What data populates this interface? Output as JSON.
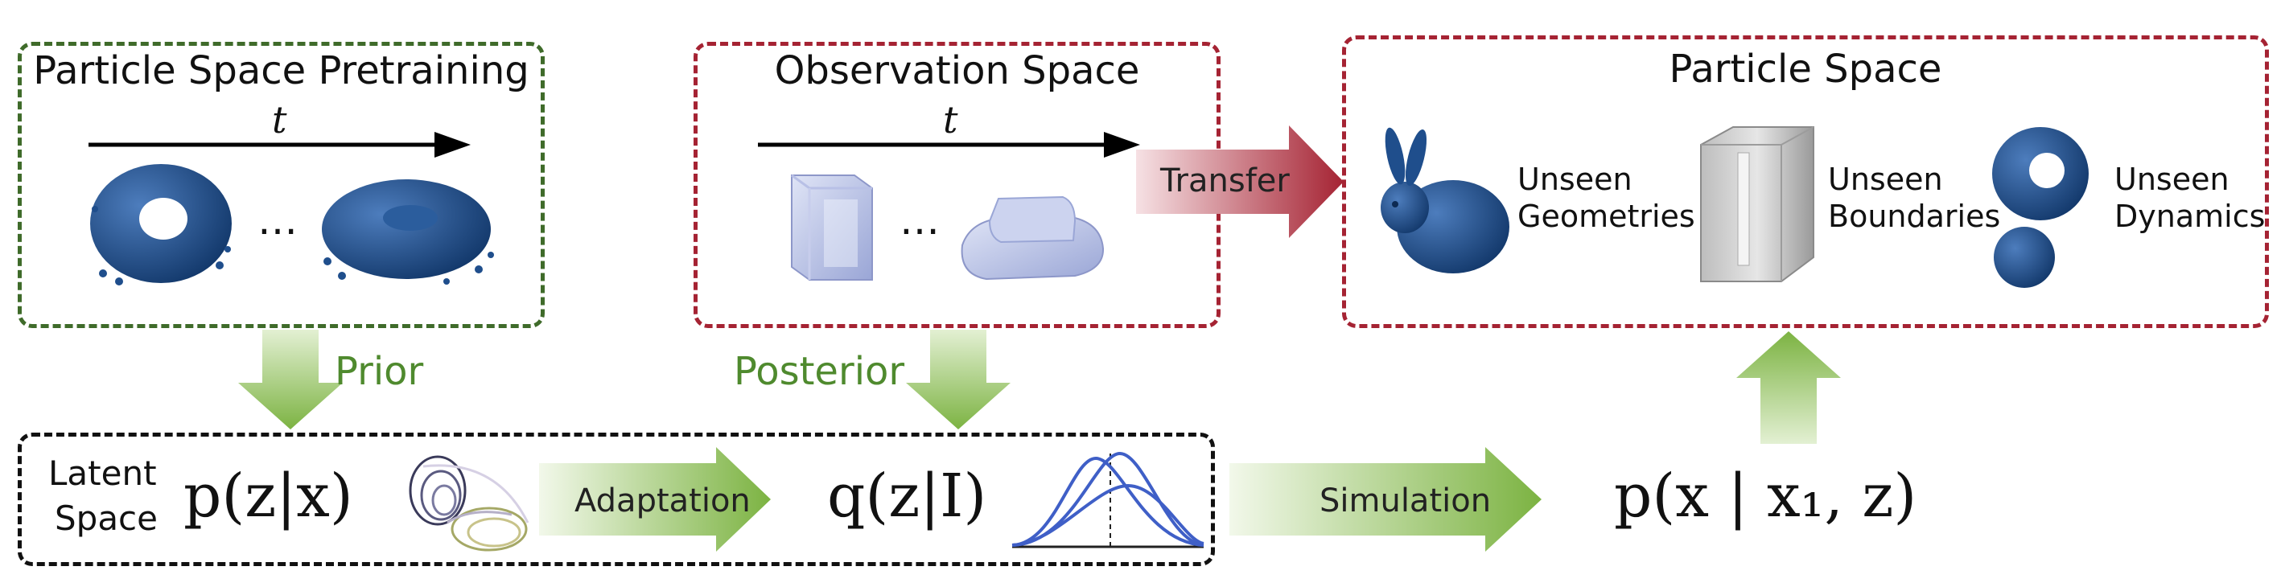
{
  "pretraining": {
    "title": "Particle Space Pretraining",
    "time_symbol": "t",
    "ellipsis": "…"
  },
  "observation": {
    "title": "Observation Space",
    "time_symbol": "t",
    "ellipsis": "…"
  },
  "particle": {
    "title": "Particle Space",
    "items": [
      {
        "line1": "Unseen",
        "line2": "Geometries"
      },
      {
        "line1": "Unseen",
        "line2": "Boundaries"
      },
      {
        "line1": "Unseen",
        "line2": "Dynamics"
      }
    ]
  },
  "arrows": {
    "transfer": "Transfer",
    "prior": "Prior",
    "posterior": "Posterior",
    "adaptation": "Adaptation",
    "simulation": "Simulation"
  },
  "latent": {
    "label_line1": "Latent",
    "label_line2": "Space",
    "prior_eq": "p(z|x)",
    "posterior_eq": "q(z|I)",
    "sim_eq": "p(x | x₁, z)"
  },
  "colors": {
    "green_border": "#3f6b2a",
    "red_border": "#a52333",
    "green_arrow": "#7cb342",
    "red_arrow": "#b0283a",
    "particle_blue": "#1f4e8c"
  }
}
